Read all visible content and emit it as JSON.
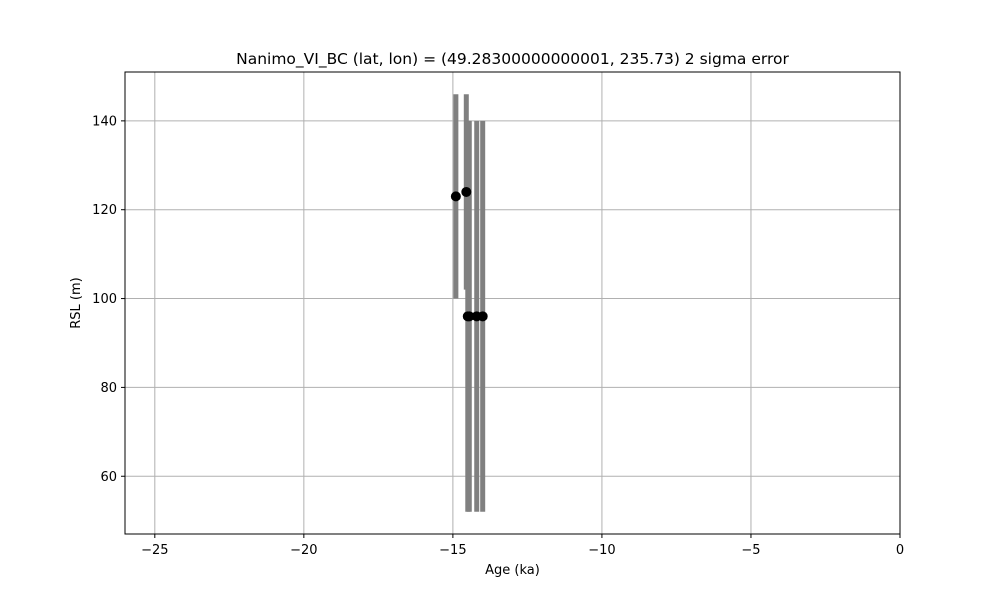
{
  "chart_data": {
    "type": "scatter",
    "title": "Nanimo_VI_BC (lat, lon) = (49.28300000000001, 235.73)  2 sigma error",
    "xlabel": "Age (ka)",
    "ylabel": "RSL (m)",
    "xlim": [
      -26,
      0
    ],
    "ylim": [
      47,
      151
    ],
    "xticks": [
      -25,
      -20,
      -15,
      -10,
      -5,
      0
    ],
    "xtick_labels": [
      "−25",
      "−20",
      "−15",
      "−10",
      "−5",
      "0"
    ],
    "yticks": [
      60,
      80,
      100,
      120,
      140
    ],
    "ytick_labels": [
      "60",
      "80",
      "100",
      "120",
      "140"
    ],
    "grid": true,
    "marker_color": "#000000",
    "errorbar_color": "#808080",
    "grid_color": "#b0b0b0",
    "points": [
      {
        "x": -14.9,
        "y": 123.0,
        "ylow": 100.0,
        "yhigh": 146.0
      },
      {
        "x": -14.55,
        "y": 124.0,
        "ylow": 102.0,
        "yhigh": 146.0
      },
      {
        "x": -14.5,
        "y": 96.0,
        "ylow": 52.0,
        "yhigh": 140.0
      },
      {
        "x": -14.45,
        "y": 96.0,
        "ylow": 52.0,
        "yhigh": 140.0
      },
      {
        "x": -14.2,
        "y": 96.0,
        "ylow": 52.0,
        "yhigh": 140.0
      },
      {
        "x": -14.0,
        "y": 96.0,
        "ylow": 52.0,
        "yhigh": 140.0
      }
    ]
  }
}
